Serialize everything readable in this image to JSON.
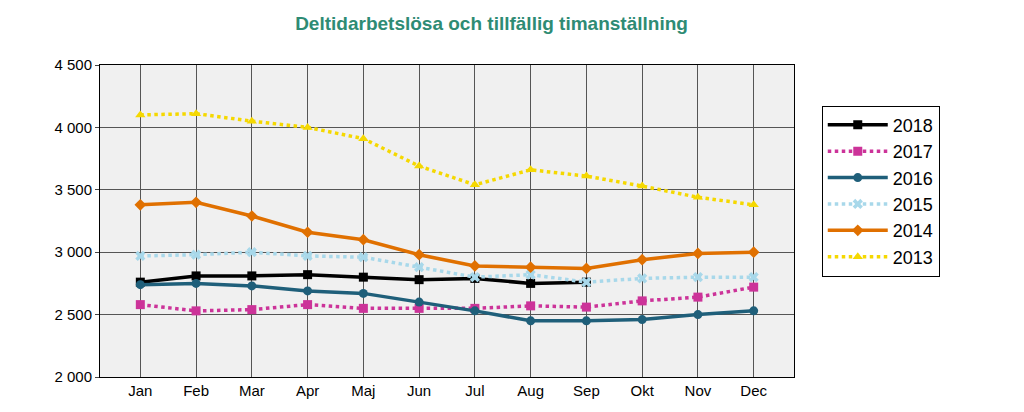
{
  "chart_data": {
    "type": "line",
    "title": "Deltidarbetslösa och tillfällig timanställning",
    "categories": [
      "Jan",
      "Feb",
      "Mar",
      "Apr",
      "Maj",
      "Jun",
      "Jul",
      "Aug",
      "Sep",
      "Okt",
      "Nov",
      "Dec"
    ],
    "series": [
      {
        "name": "2018",
        "color": "#000000",
        "marker": "square",
        "line_style": "solid",
        "values": [
          2760,
          2810,
          2810,
          2820,
          2800,
          2780,
          2790,
          2750,
          2760,
          null,
          null,
          null
        ]
      },
      {
        "name": "2017",
        "color": "#cc3399",
        "marker": "square",
        "line_style": "dot",
        "values": [
          2580,
          2530,
          2540,
          2580,
          2550,
          2550,
          2550,
          2570,
          2560,
          2610,
          2640,
          2720
        ]
      },
      {
        "name": "2016",
        "color": "#1f5f7a",
        "marker": "circle",
        "line_style": "solid",
        "values": [
          2740,
          2750,
          2730,
          2690,
          2670,
          2600,
          2530,
          2450,
          2450,
          2460,
          2500,
          2530
        ]
      },
      {
        "name": "2015",
        "color": "#a8d8ea",
        "marker": "x",
        "line_style": "dot",
        "values": [
          2970,
          2980,
          3000,
          2970,
          2960,
          2880,
          2800,
          2820,
          2760,
          2790,
          2800,
          2800
        ]
      },
      {
        "name": "2014",
        "color": "#e07000",
        "marker": "diamond",
        "line_style": "solid",
        "values": [
          3380,
          3400,
          3290,
          3160,
          3100,
          2980,
          2890,
          2880,
          2870,
          2940,
          2990,
          3000
        ]
      },
      {
        "name": "2013",
        "color": "#f5d800",
        "marker": "triangle-up",
        "line_style": "dot",
        "values": [
          4100,
          4110,
          4050,
          4000,
          3910,
          3690,
          3540,
          3660,
          3610,
          3530,
          3440,
          3380
        ]
      }
    ],
    "ylim": [
      2000,
      4500
    ],
    "yticks": [
      {
        "value": 2000,
        "label": "2 000"
      },
      {
        "value": 2500,
        "label": "2 500"
      },
      {
        "value": 3000,
        "label": "3 000"
      },
      {
        "value": 3500,
        "label": "3 500"
      },
      {
        "value": 4000,
        "label": "4 000"
      },
      {
        "value": 4500,
        "label": "4 500"
      }
    ],
    "grid": true,
    "legend": "right"
  }
}
